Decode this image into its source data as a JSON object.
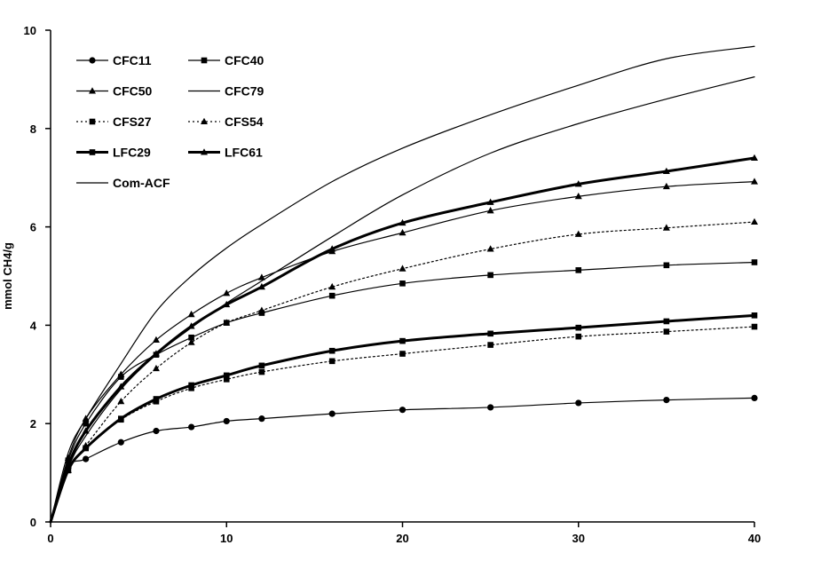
{
  "chart_data": {
    "type": "line",
    "title": "",
    "xlabel": "",
    "ylabel": "mmol CH4/g",
    "xlim": [
      0,
      40
    ],
    "ylim": [
      0,
      10
    ],
    "xticks": [
      0,
      10,
      20,
      30,
      40
    ],
    "yticks": [
      0,
      2,
      4,
      6,
      8,
      10
    ],
    "grid": false,
    "legend_position": "top-left",
    "series": [
      {
        "name": "CFC11",
        "marker": "circle",
        "dash": "solid",
        "width": "thin",
        "color": "#000000",
        "x": [
          0,
          1,
          2,
          4,
          6,
          8,
          10,
          12,
          16,
          20,
          25,
          30,
          35,
          40
        ],
        "y": [
          0,
          1.1,
          1.28,
          1.62,
          1.85,
          1.93,
          2.05,
          2.1,
          2.2,
          2.28,
          2.33,
          2.42,
          2.48,
          2.52
        ]
      },
      {
        "name": "CFC40",
        "marker": "square",
        "dash": "solid",
        "width": "thin",
        "color": "#000000",
        "x": [
          0,
          1,
          2,
          4,
          6,
          8,
          10,
          12,
          16,
          20,
          25,
          30,
          35,
          40
        ],
        "y": [
          0,
          1.25,
          2.0,
          2.95,
          3.4,
          3.75,
          4.05,
          4.25,
          4.6,
          4.85,
          5.02,
          5.12,
          5.22,
          5.28
        ]
      },
      {
        "name": "CFC50",
        "marker": "triangle",
        "dash": "solid",
        "width": "thin",
        "color": "#000000",
        "x": [
          0,
          1,
          2,
          4,
          6,
          8,
          10,
          12,
          16,
          20,
          25,
          30,
          35,
          40
        ],
        "y": [
          0,
          1.3,
          2.1,
          3.0,
          3.7,
          4.22,
          4.65,
          4.97,
          5.5,
          5.88,
          6.33,
          6.62,
          6.82,
          6.92
        ]
      },
      {
        "name": "CFC79",
        "marker": "none",
        "dash": "solid",
        "width": "thin",
        "color": "#000000",
        "x": [
          0,
          1,
          2,
          4,
          6,
          8,
          10,
          12,
          16,
          20,
          25,
          30,
          35,
          40
        ],
        "y": [
          0,
          1.1,
          1.75,
          2.7,
          3.4,
          3.95,
          4.45,
          4.9,
          5.8,
          6.65,
          7.5,
          8.1,
          8.6,
          9.05
        ]
      },
      {
        "name": "CFS27",
        "marker": "square",
        "dash": "dotted",
        "width": "thin",
        "color": "#000000",
        "x": [
          0,
          1,
          2,
          4,
          6,
          8,
          10,
          12,
          16,
          20,
          25,
          30,
          35,
          40
        ],
        "y": [
          0,
          1.05,
          1.5,
          2.08,
          2.45,
          2.72,
          2.9,
          3.05,
          3.27,
          3.42,
          3.6,
          3.77,
          3.87,
          3.97
        ]
      },
      {
        "name": "CFS54",
        "marker": "triangle",
        "dash": "dotted",
        "width": "thin",
        "color": "#000000",
        "x": [
          0,
          1,
          2,
          4,
          6,
          8,
          10,
          12,
          16,
          20,
          25,
          30,
          35,
          40
        ],
        "y": [
          0,
          1.05,
          1.55,
          2.45,
          3.12,
          3.65,
          4.05,
          4.3,
          4.78,
          5.15,
          5.55,
          5.85,
          5.98,
          6.1
        ]
      },
      {
        "name": "LFC29",
        "marker": "square",
        "dash": "solid",
        "width": "thick",
        "color": "#000000",
        "x": [
          0,
          1,
          2,
          4,
          6,
          8,
          10,
          12,
          16,
          20,
          25,
          30,
          35,
          40
        ],
        "y": [
          0,
          1.05,
          1.5,
          2.1,
          2.5,
          2.78,
          2.98,
          3.18,
          3.48,
          3.68,
          3.83,
          3.95,
          4.08,
          4.2
        ]
      },
      {
        "name": "LFC61",
        "marker": "triangle",
        "dash": "solid",
        "width": "thick",
        "color": "#000000",
        "x": [
          0,
          1,
          2,
          4,
          6,
          8,
          10,
          12,
          16,
          20,
          25,
          30,
          35,
          40
        ],
        "y": [
          0,
          1.15,
          1.85,
          2.75,
          3.42,
          3.98,
          4.42,
          4.78,
          5.55,
          6.08,
          6.5,
          6.87,
          7.13,
          7.4
        ]
      },
      {
        "name": "Com-ACF",
        "marker": "none",
        "dash": "solid",
        "width": "thin",
        "color": "#000000",
        "x": [
          0,
          1,
          2,
          4,
          6,
          8,
          10,
          12,
          16,
          20,
          25,
          30,
          35,
          40
        ],
        "y": [
          0,
          1.4,
          2.1,
          3.22,
          4.28,
          5.0,
          5.57,
          6.05,
          6.92,
          7.6,
          8.28,
          8.88,
          9.42,
          9.67
        ]
      }
    ]
  }
}
